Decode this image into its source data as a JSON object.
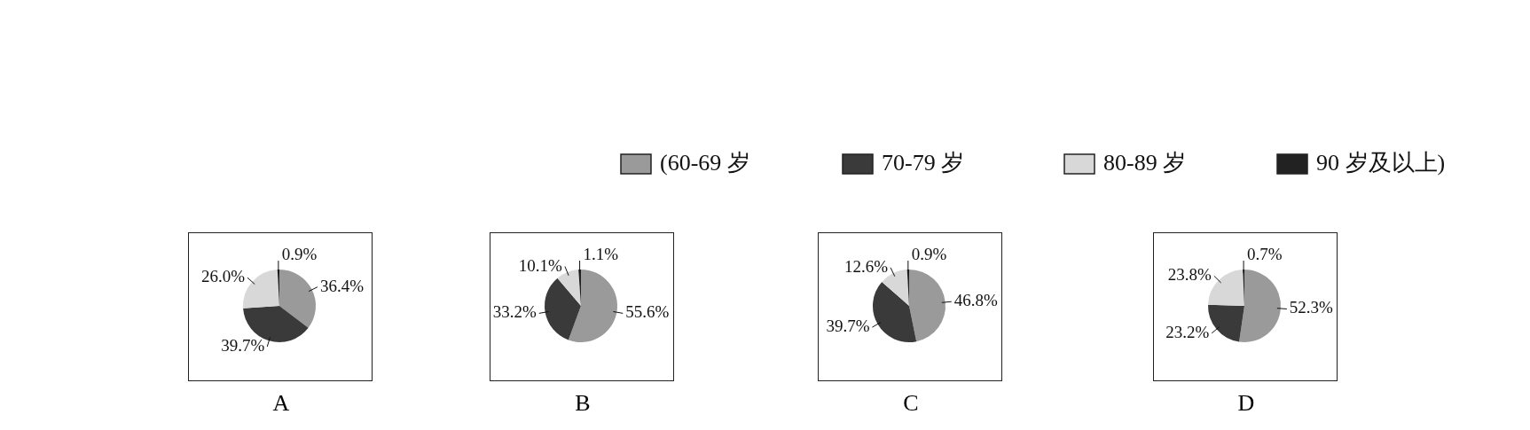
{
  "chart_data": [
    {
      "type": "pie",
      "title": "A",
      "categories": [
        "(60-69 岁",
        "70-79 岁",
        "80-89 岁",
        "90 岁及以上)"
      ],
      "values": [
        36.4,
        39.7,
        26.0,
        0.9
      ],
      "colors": [
        "#9a9a9a",
        "#3a3a3a",
        "#d8d8d8",
        "#222222"
      ],
      "value_labels": [
        "36.4%",
        "39.7%",
        "26.0%",
        "0.9%"
      ],
      "legend": "top"
    },
    {
      "type": "pie",
      "title": "B",
      "categories": [
        null,
        null,
        null,
        null
      ],
      "values": [
        55.6,
        33.2,
        10.1,
        1.1
      ],
      "colors": [
        "#9a9a9a",
        "#3a3a3a",
        "#d8d8d8",
        "#222222"
      ],
      "value_labels": [
        "55.6%",
        "33.2%",
        "10.1%",
        "1.1%"
      ]
    },
    {
      "type": "pie",
      "title": "C",
      "categories": [
        null,
        null,
        null,
        null
      ],
      "values": [
        46.8,
        39.7,
        12.6,
        0.9
      ],
      "colors": [
        "#9a9a9a",
        "#3a3a3a",
        "#d8d8d8",
        "#222222"
      ],
      "value_labels": [
        "46.8%",
        "39.7%",
        "12.6%",
        "0.9%"
      ]
    },
    {
      "type": "pie",
      "title": "D",
      "categories": [
        null,
        null,
        null,
        null
      ],
      "values": [
        52.3,
        23.2,
        23.8,
        0.7
      ],
      "colors": [
        "#9a9a9a",
        "#3a3a3a",
        "#d8d8d8",
        "#222222"
      ],
      "value_labels": [
        "52.3%",
        "23.2%",
        "23.8%",
        "0.7%"
      ]
    }
  ]
}
